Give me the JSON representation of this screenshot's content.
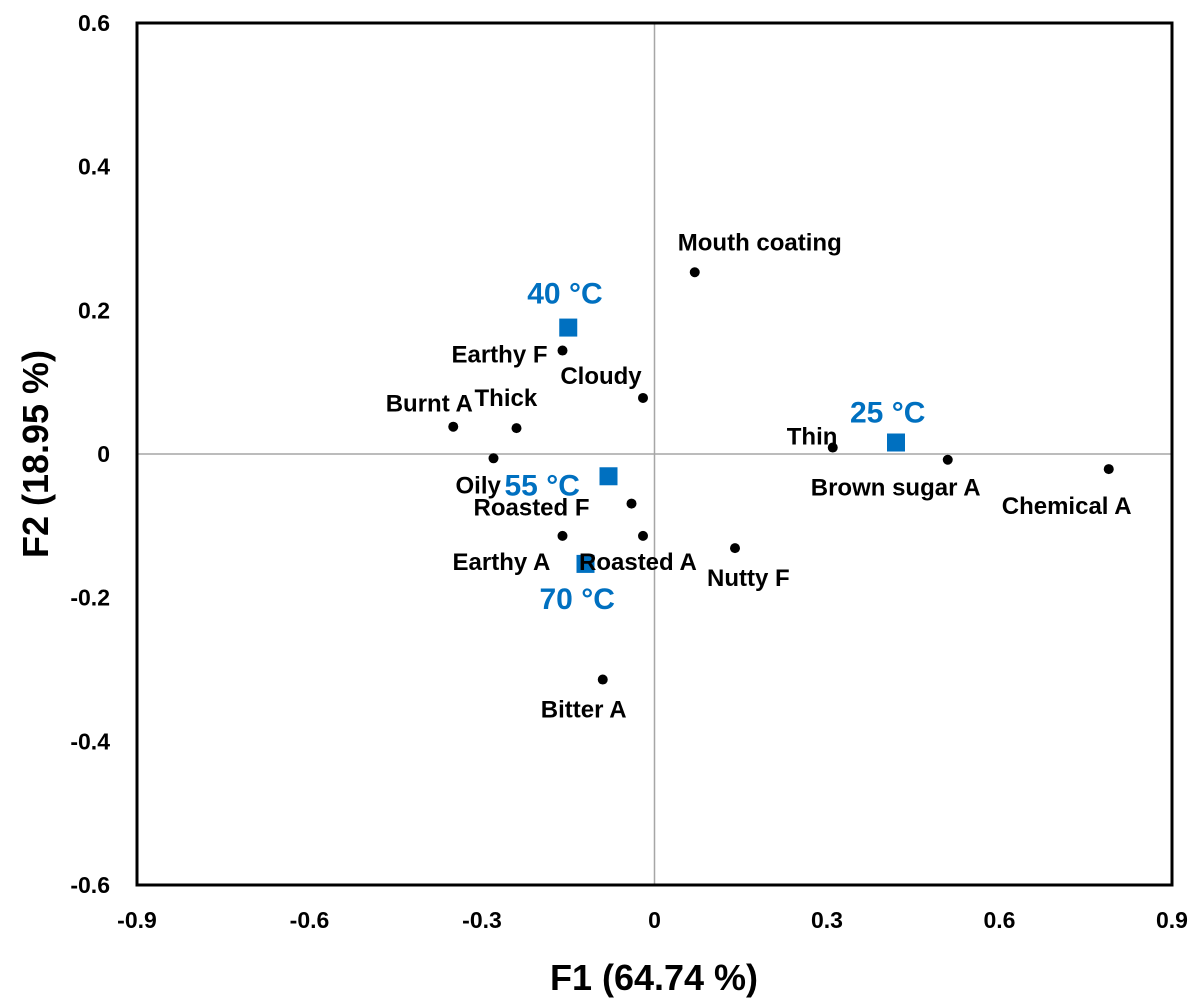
{
  "chart_data": {
    "type": "scatter",
    "xlabel": "F1 (64.74 %)",
    "ylabel": "F2 (18.95 %)",
    "xlim": [
      -0.9,
      0.9
    ],
    "ylim": [
      -0.6,
      0.6
    ],
    "x_ticks": [
      "-0.9",
      "-0.6",
      "-0.3",
      "0",
      "0.3",
      "0.6",
      "0.9"
    ],
    "y_ticks": [
      "0.6",
      "0.4",
      "0.2",
      "0",
      "-0.2",
      "-0.4",
      "-0.6"
    ],
    "grid": false,
    "reference_lines": "x=0, y=0",
    "colors": {
      "attributes": "#000000",
      "samples": "#0070C0",
      "zero_lines": "#a6a6a6"
    },
    "series": [
      {
        "marker": "circle",
        "points": [
          {
            "label": "Mouth coating",
            "x": 0.07,
            "y": 0.253
          },
          {
            "label": "Earthy F",
            "x": -0.16,
            "y": 0.144
          },
          {
            "label": "Cloudy",
            "x": -0.02,
            "y": 0.078
          },
          {
            "label": "Burnt A",
            "x": -0.35,
            "y": 0.038
          },
          {
            "label": "Thick",
            "x": -0.24,
            "y": 0.036
          },
          {
            "label": "Oily",
            "x": -0.28,
            "y": -0.006
          },
          {
            "label": "Thin",
            "x": 0.31,
            "y": 0.009
          },
          {
            "label": "Brown sugar A",
            "x": 0.51,
            "y": -0.008
          },
          {
            "label": "Chemical A",
            "x": 0.79,
            "y": -0.021
          },
          {
            "label": "Roasted F",
            "x": -0.04,
            "y": -0.069
          },
          {
            "label": "Earthy A",
            "x": -0.16,
            "y": -0.114
          },
          {
            "label": "Roasted A",
            "x": -0.02,
            "y": -0.114
          },
          {
            "label": "Nutty F",
            "x": 0.14,
            "y": -0.131
          },
          {
            "label": "Bitter A",
            "x": -0.09,
            "y": -0.314
          }
        ]
      },
      {
        "marker": "square",
        "points": [
          {
            "label": "40 °C",
            "x": -0.15,
            "y": 0.176
          },
          {
            "label": "25 °C",
            "x": 0.42,
            "y": 0.016
          },
          {
            "label": "55 °C",
            "x": -0.08,
            "y": -0.031
          },
          {
            "label": "70 °C",
            "x": -0.12,
            "y": -0.153
          }
        ]
      }
    ]
  }
}
